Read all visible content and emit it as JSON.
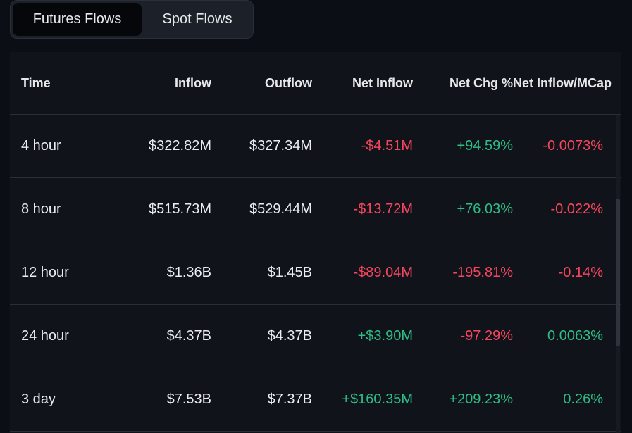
{
  "tabs": [
    {
      "label": "Futures Flows",
      "active": true
    },
    {
      "label": "Spot Flows",
      "active": false
    }
  ],
  "table": {
    "headers": {
      "time": "Time",
      "inflow": "Inflow",
      "outflow": "Outflow",
      "net_inflow": "Net Inflow",
      "net_chg": "Net Chg %",
      "net_inflow_mcap": "Net Inflow/MCap"
    },
    "rows": [
      {
        "time": "4 hour",
        "inflow": "$322.82M",
        "outflow": "$327.34M",
        "net_inflow": "-$4.51M",
        "net_chg": "+94.59%",
        "net_inflow_mcap": "-0.0073%"
      },
      {
        "time": "8 hour",
        "inflow": "$515.73M",
        "outflow": "$529.44M",
        "net_inflow": "-$13.72M",
        "net_chg": "+76.03%",
        "net_inflow_mcap": "-0.022%"
      },
      {
        "time": "12 hour",
        "inflow": "$1.36B",
        "outflow": "$1.45B",
        "net_inflow": "-$89.04M",
        "net_chg": "-195.81%",
        "net_inflow_mcap": "-0.14%"
      },
      {
        "time": "24 hour",
        "inflow": "$4.37B",
        "outflow": "$4.37B",
        "net_inflow": "+$3.90M",
        "net_chg": "-97.29%",
        "net_inflow_mcap": "0.0063%"
      },
      {
        "time": "3 day",
        "inflow": "$7.53B",
        "outflow": "$7.37B",
        "net_inflow": "+$160.35M",
        "net_chg": "+209.23%",
        "net_inflow_mcap": "0.26%"
      }
    ]
  },
  "colors": {
    "negative": "#f6465d",
    "positive": "#2ebd85",
    "background": "#0b0e14"
  }
}
